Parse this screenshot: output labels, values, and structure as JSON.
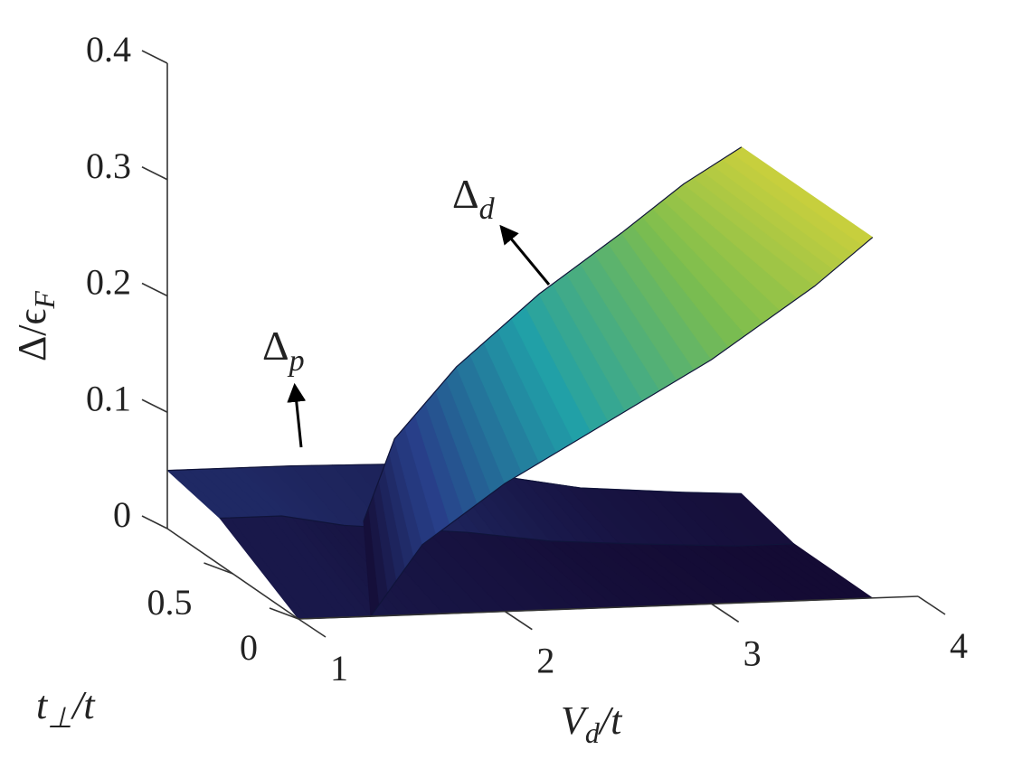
{
  "chart_data": {
    "type": "surface3d",
    "xlabel": {
      "text": "V",
      "sub": "d",
      "after": "/t"
    },
    "ylabel": {
      "text": "t",
      "sub": "⊥",
      "after": "/t"
    },
    "zlabel": {
      "text": "Δ/ϵ",
      "sub": "F"
    },
    "xlim": [
      1,
      4
    ],
    "ylim": [
      0,
      1
    ],
    "zlim": [
      0,
      0.4
    ],
    "xticks": [
      1,
      2,
      3,
      4
    ],
    "yticks": [
      0,
      0.5
    ],
    "zticks": [
      0,
      0.1,
      0.2,
      0.3,
      0.4
    ],
    "grid": false,
    "colormap": [
      "#140b34",
      "#28408a",
      "#20a0a8",
      "#7cbd4e",
      "#d6d23a"
    ],
    "surfaces": [
      {
        "edges": [
          {
            "t": 0,
            "x": [
              1,
              1.3,
              1.6,
              2.2,
              2.6,
              3,
              3.5,
              3.78
            ],
            "values": [
              0,
              0,
              0,
              0,
              0,
              0,
              0,
              0
            ]
          },
          {
            "t": 0.6,
            "x": [
              1,
              1.3,
              1.6,
              2.2,
              2.6,
              3,
              3.5,
              3.78
            ],
            "values": [
              0.04,
              0.04,
              0.03,
              0.02,
              0.01,
              0.005,
              0,
              0
            ]
          },
          {
            "t": 1,
            "x": [
              1,
              1.3,
              1.6,
              2.2,
              2.6,
              3,
              3.5,
              3.78
            ],
            "values": [
              0.05,
              0.05,
              0.05,
              0.048,
              0.035,
              0.022,
              0.015,
              0.012
            ]
          }
        ]
      },
      {
        "edges": [
          {
            "t": 0,
            "x": [
              1.35,
              1.6,
              2,
              2.5,
              3,
              3.5,
              3.78
            ],
            "values": [
              0,
              0.06,
              0.11,
              0.16,
              0.21,
              0.27,
              0.31
            ]
          },
          {
            "t": 1,
            "x": [
              1.95,
              2.1,
              2.4,
              2.8,
              3.2,
              3.5,
              3.78
            ],
            "values": [
              0,
              0.07,
              0.13,
              0.19,
              0.24,
              0.28,
              0.31
            ]
          }
        ]
      }
    ],
    "annotations": [
      {
        "text": "Δ",
        "sub": "d"
      },
      {
        "text": "Δ",
        "sub": "p"
      }
    ]
  }
}
